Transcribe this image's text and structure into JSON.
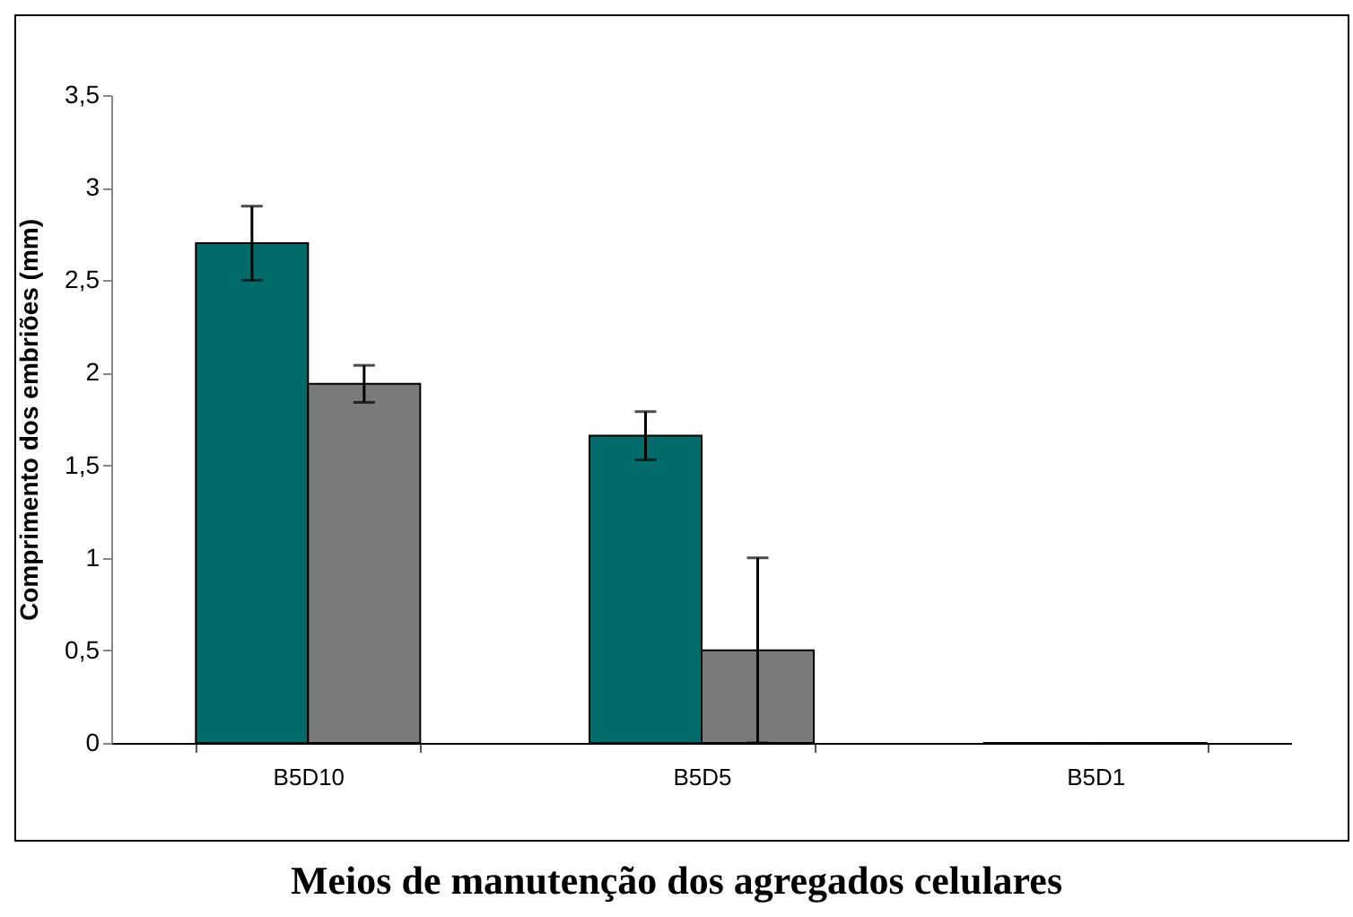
{
  "chart_data": {
    "type": "bar",
    "xlabel": "Meios de manutenção dos agregados celulares",
    "ylabel": "Comprimento dos embriões (mm)",
    "categories": [
      "B5D10",
      "B5D5",
      "B5D1"
    ],
    "series": [
      {
        "color": "#006b68",
        "values": [
          2.7,
          1.66,
          0
        ],
        "errors": [
          0.2,
          0.13,
          null
        ]
      },
      {
        "color": "#7a7a7a",
        "values": [
          1.94,
          0.5,
          0
        ],
        "errors": [
          0.1,
          0.5,
          null
        ]
      }
    ],
    "ylim": [
      0,
      3.5
    ],
    "yticks": [
      {
        "value": 0,
        "label": "0"
      },
      {
        "value": 0.5,
        "label": "0,5"
      },
      {
        "value": 1,
        "label": "1"
      },
      {
        "value": 1.5,
        "label": "1,5"
      },
      {
        "value": 2,
        "label": "2"
      },
      {
        "value": 2.5,
        "label": "2,5"
      },
      {
        "value": 3,
        "label": "3"
      },
      {
        "value": 3.5,
        "label": "3,5"
      }
    ],
    "grid": false,
    "legend": false
  }
}
